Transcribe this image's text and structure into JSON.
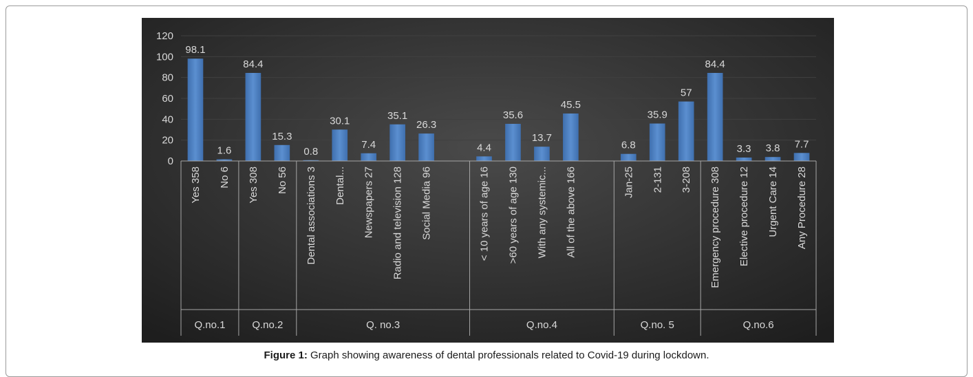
{
  "figure": {
    "label": "Figure 1:",
    "caption": "Graph showing awareness of dental professionals related to Covid-19 during lockdown."
  },
  "chart_data": {
    "type": "bar",
    "ylim": [
      0,
      120
    ],
    "yticks": [
      0,
      20,
      40,
      60,
      80,
      100,
      120
    ],
    "grid": true,
    "legend": "none",
    "colors": {
      "background": "#262626",
      "bar": "#4f81bd",
      "text": "#d9d9d9",
      "grid": "#404040",
      "axis": "#a6a6a6"
    },
    "groups": [
      {
        "name": "Q.no.1",
        "categories": [
          "Yes 358",
          "No 6"
        ],
        "values": [
          98.1,
          1.6
        ]
      },
      {
        "name": "Q.no.2",
        "categories": [
          "Yes 308",
          "No 56"
        ],
        "values": [
          84.4,
          15.3
        ]
      },
      {
        "name": "Q. no.3",
        "categories": [
          "Dental associations 3",
          "Dental...",
          "Newspapers 27",
          "Radio and television 128",
          "Social Media 96",
          ""
        ],
        "values": [
          0.8,
          30.1,
          7.4,
          35.1,
          26.3,
          null
        ]
      },
      {
        "name": "Q.no.4",
        "categories": [
          "< 10 years of age 16",
          ">60 years of age 130",
          "With any systemic...",
          "All of the above 166",
          ""
        ],
        "values": [
          4.4,
          35.6,
          13.7,
          45.5,
          null
        ]
      },
      {
        "name": "Q.no. 5",
        "categories": [
          "Jan-25",
          "2-131",
          "3-208"
        ],
        "values": [
          6.8,
          35.9,
          57
        ]
      },
      {
        "name": "Q.no.6",
        "categories": [
          "Emergency procedure 308",
          "Elective procedure 12",
          "Urgent Care 14",
          "Any Procedure 28"
        ],
        "values": [
          84.4,
          3.3,
          3.8,
          7.7
        ]
      }
    ]
  }
}
